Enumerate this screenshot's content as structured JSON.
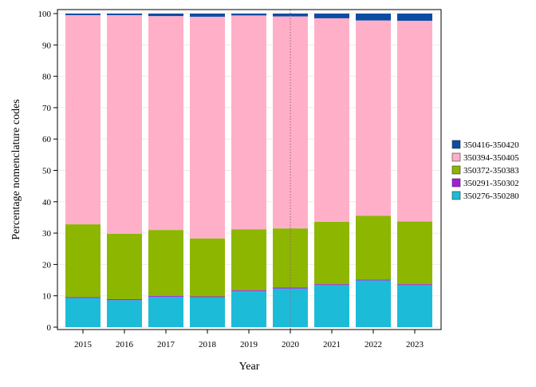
{
  "chart_data": {
    "type": "bar",
    "stacked": true,
    "title": "",
    "xlabel": "Year",
    "ylabel": "Percentage nomenclature codes",
    "ylim": [
      0,
      100
    ],
    "yticks": [
      0,
      10,
      20,
      30,
      40,
      50,
      60,
      70,
      80,
      90,
      100
    ],
    "categories": [
      "2015",
      "2016",
      "2017",
      "2018",
      "2019",
      "2020",
      "2021",
      "2022",
      "2023"
    ],
    "series": [
      {
        "name": "350276-350280",
        "color": "#1cbcd8",
        "values": [
          9.3,
          8.6,
          9.7,
          9.5,
          11.5,
          12.3,
          13.4,
          14.9,
          13.4
        ]
      },
      {
        "name": "350291-350302",
        "color": "#a61cdc",
        "values": [
          0.3,
          0.3,
          0.3,
          0.3,
          0.3,
          0.3,
          0.3,
          0.3,
          0.3
        ]
      },
      {
        "name": "350372-350383",
        "color": "#8db600",
        "values": [
          23.2,
          20.9,
          21.0,
          18.5,
          19.4,
          18.9,
          19.9,
          20.3,
          20.0
        ]
      },
      {
        "name": "350394-350405",
        "color": "#ffb0c8",
        "values": [
          66.7,
          69.7,
          68.2,
          70.7,
          68.2,
          67.6,
          64.9,
          62.3,
          64.0
        ]
      },
      {
        "name": "350416-350420",
        "color": "#0a4da3",
        "values": [
          0.5,
          0.5,
          0.8,
          1.0,
          0.6,
          0.9,
          1.5,
          2.2,
          2.3
        ]
      }
    ],
    "reference_line": {
      "x": "2020",
      "color": "#a0607a"
    },
    "legend_position": "right",
    "grid": true
  }
}
